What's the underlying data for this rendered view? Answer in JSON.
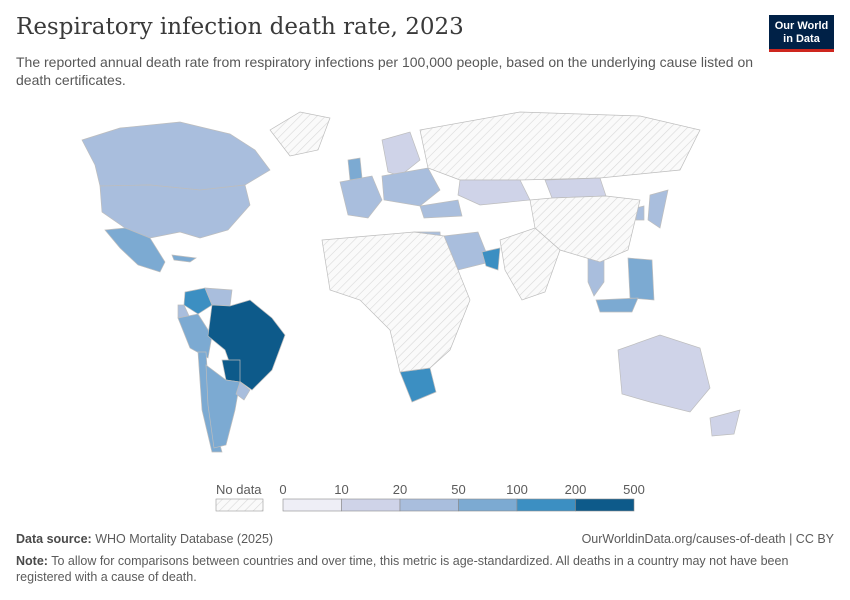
{
  "title": "Respiratory infection death rate, 2023",
  "subtitle": "The reported annual death rate from respiratory infections per 100,000 people, based on the underlying cause listed on death certificates.",
  "logo": {
    "line1": "Our World",
    "line2": "in Data"
  },
  "legend": {
    "no_data_label": "No data",
    "ticks": [
      "0",
      "10",
      "20",
      "50",
      "100",
      "200",
      "500"
    ],
    "bins": [
      {
        "min": 0,
        "max": 10,
        "color": "#eeeef6"
      },
      {
        "min": 10,
        "max": 20,
        "color": "#cfd3e8"
      },
      {
        "min": 20,
        "max": 50,
        "color": "#a9bedd"
      },
      {
        "min": 50,
        "max": 100,
        "color": "#7caad2"
      },
      {
        "min": 100,
        "max": 200,
        "color": "#3c8fc2"
      },
      {
        "min": 200,
        "max": 500,
        "color": "#0d5a8a"
      }
    ],
    "no_data_color": "#e6e6e6"
  },
  "map_data": [
    {
      "region": "Canada",
      "value": 25
    },
    {
      "region": "United States",
      "value": 30
    },
    {
      "region": "Mexico",
      "value": 60
    },
    {
      "region": "Cuba",
      "value": 80
    },
    {
      "region": "Colombia",
      "value": 110
    },
    {
      "region": "Venezuela",
      "value": 30
    },
    {
      "region": "Ecuador",
      "value": 40
    },
    {
      "region": "Peru",
      "value": 70
    },
    {
      "region": "Brazil",
      "value": 250
    },
    {
      "region": "Paraguay",
      "value": 220
    },
    {
      "region": "Chile",
      "value": 70
    },
    {
      "region": "Argentina",
      "value": 70
    },
    {
      "region": "Uruguay",
      "value": 40
    },
    {
      "region": "Greenland",
      "value": null
    },
    {
      "region": "Western Europe",
      "value": 35
    },
    {
      "region": "United Kingdom",
      "value": 80
    },
    {
      "region": "Scandinavia",
      "value": 15
    },
    {
      "region": "Eastern Europe",
      "value": 45
    },
    {
      "region": "Russia",
      "value": null
    },
    {
      "region": "Kazakhstan",
      "value": 15
    },
    {
      "region": "Mongolia",
      "value": 12
    },
    {
      "region": "Turkey",
      "value": 40
    },
    {
      "region": "Egypt",
      "value": 30
    },
    {
      "region": "Saudi Arabia",
      "value": 30
    },
    {
      "region": "Oman",
      "value": 120
    },
    {
      "region": "Japan",
      "value": 30
    },
    {
      "region": "South Korea",
      "value": 40
    },
    {
      "region": "Thailand",
      "value": 40
    },
    {
      "region": "Philippines",
      "value": 80
    },
    {
      "region": "Malaysia",
      "value": 60
    },
    {
      "region": "South Africa",
      "value": 110
    },
    {
      "region": "Australia",
      "value": 15
    },
    {
      "region": "New Zealand",
      "value": 15
    },
    {
      "region": "China",
      "value": null
    },
    {
      "region": "India",
      "value": null
    },
    {
      "region": "Africa (rest)",
      "value": null
    }
  ],
  "footer": {
    "source_label": "Data source:",
    "source_value": "WHO Mortality Database (2025)",
    "url": "OurWorldinData.org/causes-of-death | CC BY",
    "note_label": "Note:",
    "note_text": "To allow for comparisons between countries and over time, this metric is age-standardized. All deaths in a country may not have been registered with a cause of death."
  }
}
